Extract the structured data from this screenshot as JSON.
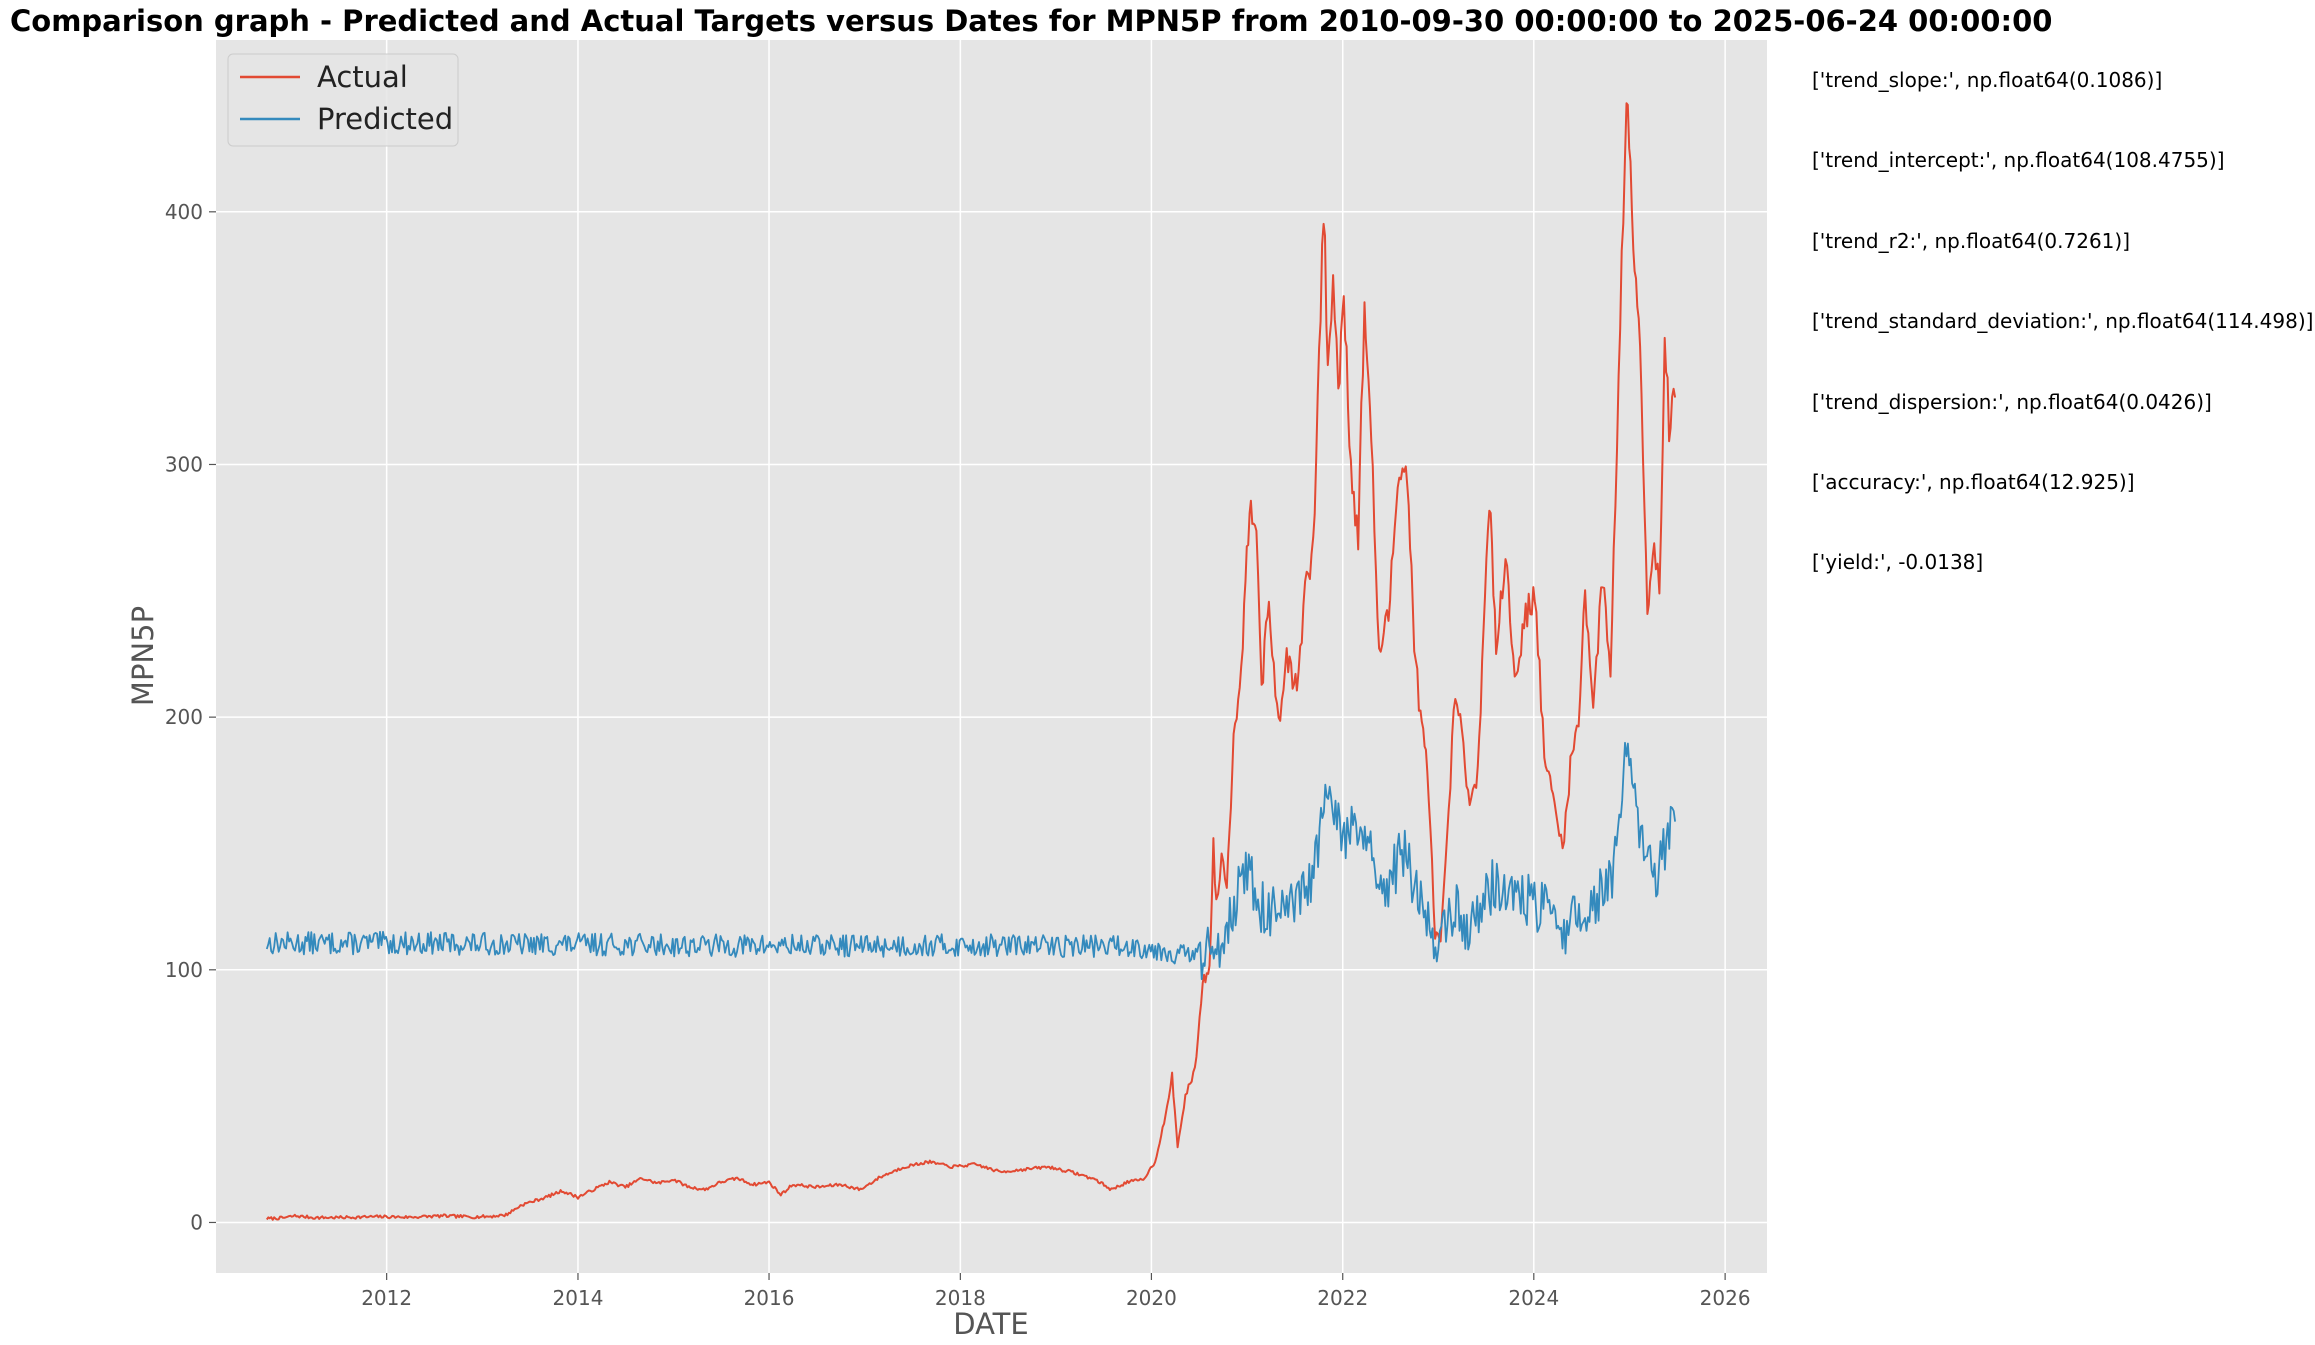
{
  "chart_data": {
    "type": "line",
    "title": "Comparison graph - Predicted and Actual Targets versus Dates for MPN5P from 2010-09-30 00:00:00 to 2025-06-24 00:00:00",
    "xlabel": "DATE",
    "ylabel": "MPN5P",
    "x_ticks": [
      "2012",
      "2014",
      "2016",
      "2018",
      "2020",
      "2022",
      "2024",
      "2026"
    ],
    "y_ticks": [
      "0",
      "100",
      "200",
      "300",
      "400"
    ],
    "xlim": [
      "2010-03-20",
      "2026-06-10"
    ],
    "ylim": [
      -20,
      468
    ],
    "grid": true,
    "legend": "top-left",
    "series": [
      {
        "name": "Actual",
        "color": "#E24A33",
        "points": [
          [
            "2010-09-30",
            1.5
          ],
          [
            "2010-12-01",
            1.8
          ],
          [
            "2011-01-15",
            2.6
          ],
          [
            "2011-04-01",
            1.9
          ],
          [
            "2011-08-01",
            2.0
          ],
          [
            "2011-12-01",
            2.3
          ],
          [
            "2012-04-01",
            2.1
          ],
          [
            "2012-08-01",
            2.6
          ],
          [
            "2012-12-01",
            2.2
          ],
          [
            "2013-02-01",
            2.4
          ],
          [
            "2013-04-01",
            3.0
          ],
          [
            "2013-06-01",
            7.0
          ],
          [
            "2013-09-01",
            10.0
          ],
          [
            "2013-11-01",
            12.5
          ],
          [
            "2014-01-01",
            10.0
          ],
          [
            "2014-03-01",
            13.0
          ],
          [
            "2014-05-01",
            16.0
          ],
          [
            "2014-07-01",
            14.0
          ],
          [
            "2014-09-01",
            17.5
          ],
          [
            "2014-11-01",
            15.5
          ],
          [
            "2015-01-01",
            17.0
          ],
          [
            "2015-03-01",
            14.0
          ],
          [
            "2015-05-01",
            13.0
          ],
          [
            "2015-07-01",
            16.0
          ],
          [
            "2015-09-01",
            17.5
          ],
          [
            "2015-11-01",
            15.0
          ],
          [
            "2016-01-01",
            16.0
          ],
          [
            "2016-02-15",
            11.0
          ],
          [
            "2016-04-01",
            15.0
          ],
          [
            "2016-07-01",
            14.0
          ],
          [
            "2016-10-01",
            15.0
          ],
          [
            "2016-12-15",
            13.0
          ],
          [
            "2017-03-01",
            18.0
          ],
          [
            "2017-06-01",
            22.0
          ],
          [
            "2017-09-01",
            24.0
          ],
          [
            "2017-12-01",
            22.0
          ],
          [
            "2018-03-01",
            23.0
          ],
          [
            "2018-06-01",
            20.0
          ],
          [
            "2018-09-01",
            21.0
          ],
          [
            "2018-12-01",
            22.0
          ],
          [
            "2019-03-01",
            20.0
          ],
          [
            "2019-06-01",
            17.0
          ],
          [
            "2019-08-01",
            13.0
          ],
          [
            "2019-10-01",
            16.0
          ],
          [
            "2019-12-01",
            17.0
          ],
          [
            "2020-01-15",
            24.0
          ],
          [
            "2020-03-01",
            45.0
          ],
          [
            "2020-03-20",
            58.0
          ],
          [
            "2020-04-10",
            30.0
          ],
          [
            "2020-05-10",
            50.0
          ],
          [
            "2020-06-15",
            60.0
          ],
          [
            "2020-07-15",
            95.0
          ],
          [
            "2020-08-10",
            100.0
          ],
          [
            "2020-08-25",
            150.0
          ],
          [
            "2020-09-05",
            125.0
          ],
          [
            "2020-09-25",
            145.0
          ],
          [
            "2020-10-15",
            135.0
          ],
          [
            "2020-11-10",
            190.0
          ],
          [
            "2020-12-15",
            230.0
          ],
          [
            "2021-01-10",
            285.0
          ],
          [
            "2021-02-05",
            280.0
          ],
          [
            "2021-02-25",
            212.0
          ],
          [
            "2021-03-25",
            245.0
          ],
          [
            "2021-05-01",
            195.0
          ],
          [
            "2021-06-01",
            225.0
          ],
          [
            "2021-07-10",
            210.0
          ],
          [
            "2021-08-10",
            250.0
          ],
          [
            "2021-09-10",
            265.0
          ],
          [
            "2021-10-20",
            402.0
          ],
          [
            "2021-11-05",
            340.0
          ],
          [
            "2021-11-25",
            372.0
          ],
          [
            "2021-12-15",
            330.0
          ],
          [
            "2022-01-05",
            370.0
          ],
          [
            "2022-02-01",
            300.0
          ],
          [
            "2022-03-01",
            270.0
          ],
          [
            "2022-03-25",
            365.0
          ],
          [
            "2022-04-20",
            310.0
          ],
          [
            "2022-05-20",
            225.0
          ],
          [
            "2022-06-25",
            240.0
          ],
          [
            "2022-08-05",
            302.0
          ],
          [
            "2022-09-05",
            295.0
          ],
          [
            "2022-10-01",
            230.0
          ],
          [
            "2022-10-25",
            200.0
          ],
          [
            "2022-11-20",
            180.0
          ],
          [
            "2022-12-20",
            115.0
          ],
          [
            "2023-01-10",
            110.0
          ],
          [
            "2023-02-10",
            160.0
          ],
          [
            "2023-03-01",
            205.0
          ],
          [
            "2023-04-01",
            195.0
          ],
          [
            "2023-05-01",
            162.0
          ],
          [
            "2023-06-01",
            180.0
          ],
          [
            "2023-07-15",
            285.0
          ],
          [
            "2023-08-10",
            230.0
          ],
          [
            "2023-09-15",
            265.0
          ],
          [
            "2023-10-20",
            215.0
          ],
          [
            "2023-12-01",
            240.0
          ],
          [
            "2024-01-05",
            250.0
          ],
          [
            "2024-02-10",
            185.0
          ],
          [
            "2024-03-20",
            165.0
          ],
          [
            "2024-04-20",
            148.0
          ],
          [
            "2024-05-20",
            180.0
          ],
          [
            "2024-06-20",
            200.0
          ],
          [
            "2024-07-15",
            250.0
          ],
          [
            "2024-08-15",
            205.0
          ],
          [
            "2024-09-20",
            255.0
          ],
          [
            "2024-10-20",
            220.0
          ],
          [
            "2024-11-20",
            330.0
          ],
          [
            "2024-12-20",
            450.0
          ],
          [
            "2025-01-15",
            395.0
          ],
          [
            "2025-02-10",
            350.0
          ],
          [
            "2025-03-10",
            240.0
          ],
          [
            "2025-04-05",
            275.0
          ],
          [
            "2025-04-25",
            245.0
          ],
          [
            "2025-05-15",
            350.0
          ],
          [
            "2025-06-01",
            315.0
          ],
          [
            "2025-06-24",
            330.0
          ]
        ]
      },
      {
        "name": "Predicted",
        "color": "#348ABD",
        "points": [
          [
            "2010-09-30",
            111.0
          ],
          [
            "2011-06-01",
            111.0
          ],
          [
            "2012-06-01",
            111.0
          ],
          [
            "2013-06-01",
            110.5
          ],
          [
            "2014-06-01",
            110.5
          ],
          [
            "2015-06-01",
            110.0
          ],
          [
            "2016-06-01",
            110.0
          ],
          [
            "2017-06-01",
            110.0
          ],
          [
            "2018-06-01",
            110.0
          ],
          [
            "2019-06-01",
            110.0
          ],
          [
            "2019-12-01",
            109.5
          ],
          [
            "2020-06-01",
            106.0
          ],
          [
            "2020-09-01",
            108.0
          ],
          [
            "2020-11-01",
            125.0
          ],
          [
            "2021-01-01",
            140.0
          ],
          [
            "2021-03-01",
            125.0
          ],
          [
            "2021-06-01",
            122.0
          ],
          [
            "2021-09-01",
            135.0
          ],
          [
            "2021-11-01",
            168.0
          ],
          [
            "2022-01-01",
            155.0
          ],
          [
            "2022-04-01",
            155.0
          ],
          [
            "2022-06-01",
            125.0
          ],
          [
            "2022-08-15",
            150.0
          ],
          [
            "2022-11-01",
            125.0
          ],
          [
            "2023-01-01",
            112.0
          ],
          [
            "2023-03-01",
            125.0
          ],
          [
            "2023-05-01",
            118.0
          ],
          [
            "2023-08-01",
            135.0
          ],
          [
            "2023-11-01",
            130.0
          ],
          [
            "2024-02-01",
            125.0
          ],
          [
            "2024-05-01",
            118.0
          ],
          [
            "2024-08-01",
            125.0
          ],
          [
            "2024-11-01",
            140.0
          ],
          [
            "2024-12-20",
            185.0
          ],
          [
            "2025-02-01",
            160.0
          ],
          [
            "2025-04-01",
            135.0
          ],
          [
            "2025-06-24",
            160.0
          ]
        ]
      }
    ]
  },
  "stats": [
    "['trend_slope:', np.float64(0.1086)]",
    "['trend_intercept:', np.float64(108.4755)]",
    "['trend_r2:', np.float64(0.7261)]",
    "['trend_standard_deviation:', np.float64(114.498)]",
    "['trend_dispersion:', np.float64(0.0426)]",
    "['accuracy:', np.float64(12.925)]",
    "['yield:', -0.0138]"
  ]
}
